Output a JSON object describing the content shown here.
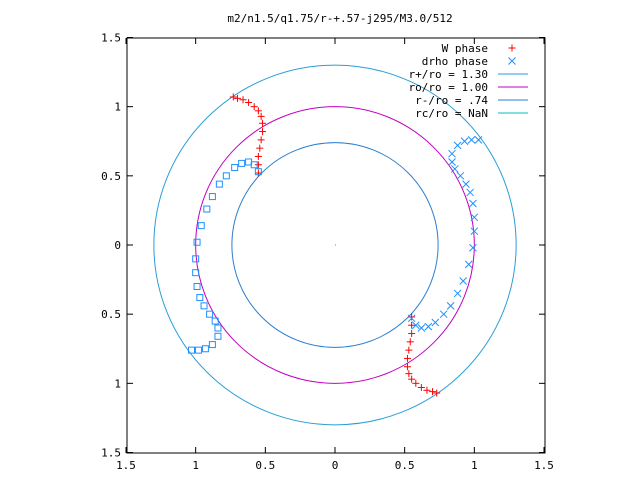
{
  "chart_data": {
    "type": "scatter",
    "title": "m2/n1.5/q1.75/r-+.57-j295/M3.0/512",
    "xlabel": "",
    "ylabel": "",
    "xlim": [
      -1.5,
      1.5
    ],
    "ylim": [
      -1.5,
      1.5
    ],
    "xticks": [
      {
        "value": -1.5,
        "label": "1.5"
      },
      {
        "value": -1.0,
        "label": "1"
      },
      {
        "value": -0.5,
        "label": "0.5"
      },
      {
        "value": 0,
        "label": "0"
      },
      {
        "value": 0.5,
        "label": "0.5"
      },
      {
        "value": 1.0,
        "label": "1"
      },
      {
        "value": 1.5,
        "label": "1.5"
      }
    ],
    "yticks": [
      {
        "value": 1.5,
        "label": "1.5"
      },
      {
        "value": 1.0,
        "label": "1"
      },
      {
        "value": 0.5,
        "label": "0.5"
      },
      {
        "value": 0,
        "label": "0"
      },
      {
        "value": -0.5,
        "label": "0.5"
      },
      {
        "value": -1.0,
        "label": "1"
      },
      {
        "value": -1.5,
        "label": "1.5"
      }
    ],
    "grid": false,
    "legend_position": "top-right",
    "legend": [
      {
        "label": "W phase",
        "marker": "plus",
        "color": "#ff0000"
      },
      {
        "label": "drho phase",
        "marker": "cross",
        "color": "#1e90ff"
      },
      {
        "label": "r+/ro = 1.30",
        "marker": "line",
        "color": "#2a9fd6"
      },
      {
        "label": "ro/ro = 1.00",
        "marker": "line",
        "color": "#c000c0"
      },
      {
        "label": "r-/ro = .74",
        "marker": "line",
        "color": "#2a7fd0"
      },
      {
        "label": "rc/ro = NaN",
        "marker": "line",
        "color": "#00c0c0"
      }
    ],
    "circles": [
      {
        "name": "r+/ro = 1.30",
        "radius": 1.3,
        "color": "#2a9fd6"
      },
      {
        "name": "ro/ro = 1.00",
        "radius": 1.0,
        "color": "#c000c0"
      },
      {
        "name": "r-/ro = .74",
        "radius": 0.74,
        "color": "#2a7fd0"
      }
    ],
    "series": [
      {
        "name": "W phase",
        "marker": "plus",
        "color": "#ff0000",
        "x": [
          -0.73,
          -0.7,
          -0.66,
          -0.62,
          -0.58,
          -0.55,
          -0.53,
          -0.52,
          -0.52,
          -0.53,
          -0.54,
          -0.55,
          -0.55,
          -0.55,
          0.73,
          0.7,
          0.66,
          0.62,
          0.58,
          0.55,
          0.53,
          0.52,
          0.52,
          0.53,
          0.54,
          0.55,
          0.55,
          0.55
        ],
        "y": [
          1.07,
          1.06,
          1.05,
          1.03,
          1.0,
          0.97,
          0.93,
          0.88,
          0.82,
          0.76,
          0.7,
          0.64,
          0.58,
          0.52,
          -1.07,
          -1.06,
          -1.05,
          -1.03,
          -1.0,
          -0.97,
          -0.93,
          -0.88,
          -0.82,
          -0.76,
          -0.7,
          -0.64,
          -0.58,
          -0.52
        ]
      },
      {
        "name": "drho phase (squares)",
        "marker": "square",
        "color": "#1e90ff",
        "x": [
          -0.55,
          -0.58,
          -0.62,
          -0.67,
          -0.72,
          -0.78,
          -0.83,
          -0.88,
          -0.92,
          -0.96,
          -0.99,
          -1.0,
          -1.0,
          -0.99,
          -0.97,
          -0.94,
          -0.9,
          -0.86,
          -0.84,
          -0.84,
          -0.88,
          -0.93,
          -0.98,
          -1.03
        ],
        "y": [
          0.53,
          0.58,
          0.6,
          0.59,
          0.56,
          0.5,
          0.44,
          0.35,
          0.26,
          0.14,
          0.02,
          -0.1,
          -0.2,
          -0.3,
          -0.38,
          -0.44,
          -0.5,
          -0.55,
          -0.6,
          -0.66,
          -0.72,
          -0.75,
          -0.76,
          -0.76
        ]
      },
      {
        "name": "drho phase (crosses)",
        "marker": "cross",
        "color": "#1e90ff",
        "x": [
          0.55,
          0.58,
          0.62,
          0.67,
          0.72,
          0.78,
          0.83,
          0.88,
          0.92,
          0.96,
          0.99,
          1.0,
          1.0,
          0.99,
          0.97,
          0.94,
          0.9,
          0.86,
          0.84,
          0.84,
          0.88,
          0.93,
          0.98,
          1.03
        ],
        "y": [
          -0.53,
          -0.58,
          -0.6,
          -0.59,
          -0.56,
          -0.5,
          -0.44,
          -0.35,
          -0.26,
          -0.14,
          -0.02,
          0.1,
          0.2,
          0.3,
          0.38,
          0.44,
          0.5,
          0.55,
          0.6,
          0.66,
          0.72,
          0.75,
          0.76,
          0.76
        ]
      }
    ]
  }
}
